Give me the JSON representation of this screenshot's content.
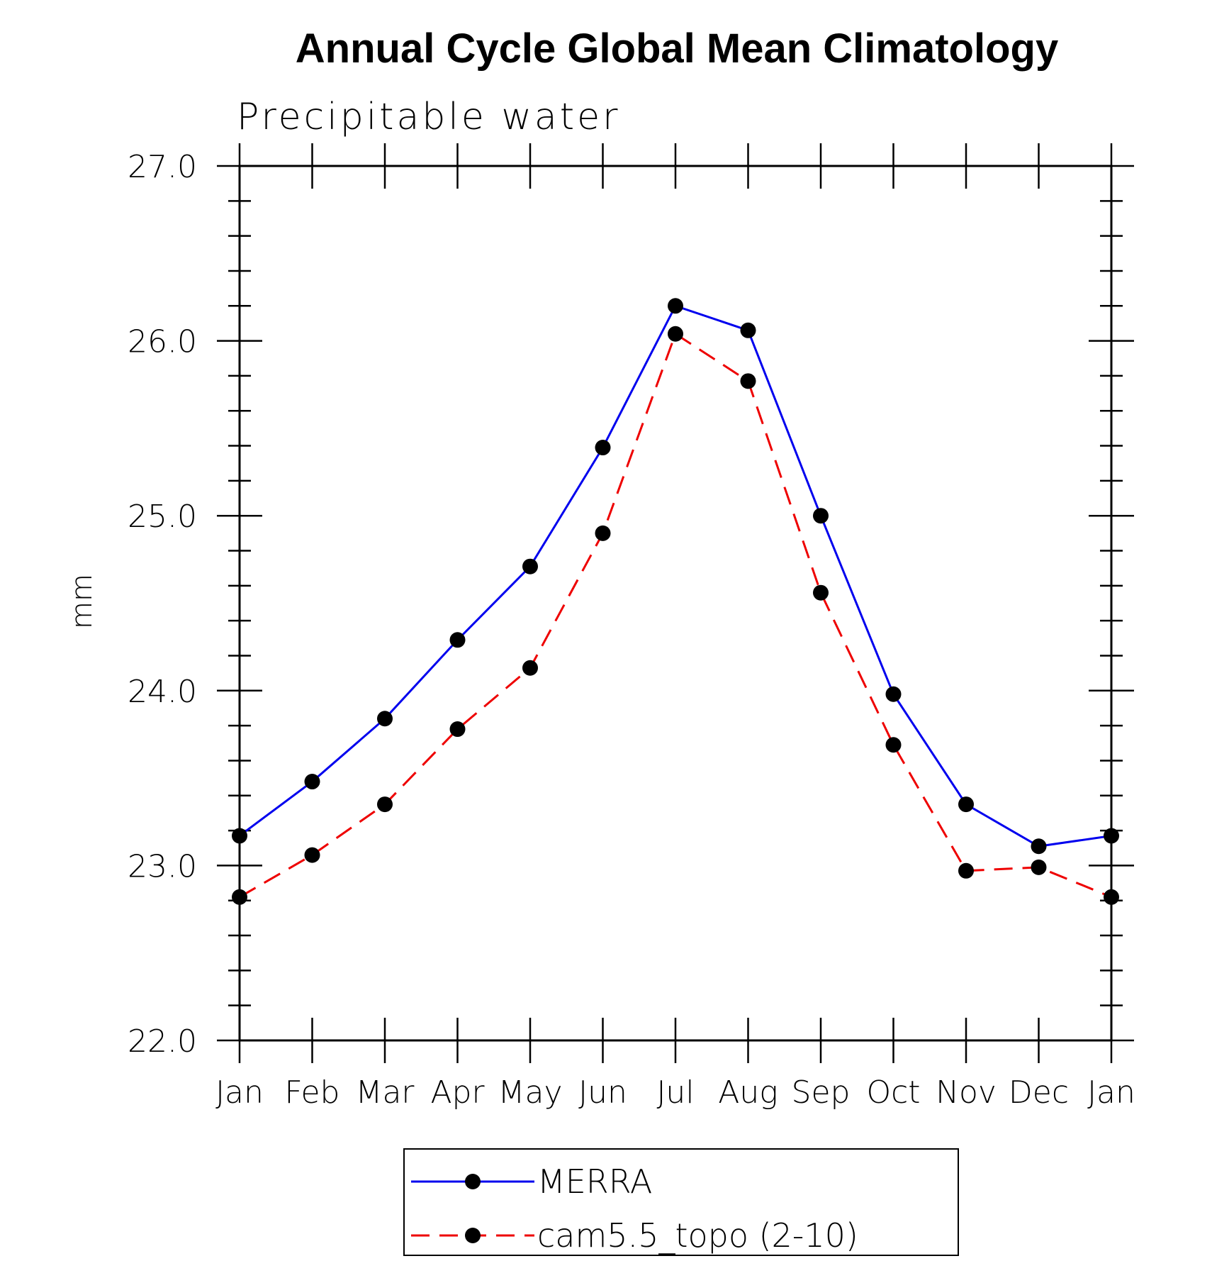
{
  "chart_data": {
    "type": "line",
    "title": "Annual Cycle Global Mean Climatology",
    "subtitle": "Precipitable water",
    "xlabel": "",
    "ylabel": "mm",
    "categories": [
      "Jan",
      "Feb",
      "Mar",
      "Apr",
      "May",
      "Jun",
      "Jul",
      "Aug",
      "Sep",
      "Oct",
      "Nov",
      "Dec",
      "Jan"
    ],
    "ylim": [
      22.0,
      27.0
    ],
    "yticks": [
      "22.0",
      "23.0",
      "24.0",
      "25.0",
      "26.0",
      "27.0"
    ],
    "grid": false,
    "legend_position": "bottom",
    "series": [
      {
        "name": "MERRA",
        "color": "#0000ee",
        "line_style": "solid",
        "marker": "filled-circle",
        "values": [
          23.17,
          23.48,
          23.84,
          24.29,
          24.71,
          25.39,
          26.2,
          26.06,
          25.0,
          23.98,
          23.35,
          23.11,
          23.17
        ]
      },
      {
        "name": "cam5.5_topo (2-10)",
        "color": "#ee0000",
        "line_style": "dashed",
        "marker": "filled-circle",
        "values": [
          22.82,
          23.06,
          23.35,
          23.78,
          24.13,
          24.9,
          26.04,
          25.77,
          24.56,
          23.69,
          22.97,
          22.99,
          22.82
        ]
      }
    ]
  }
}
